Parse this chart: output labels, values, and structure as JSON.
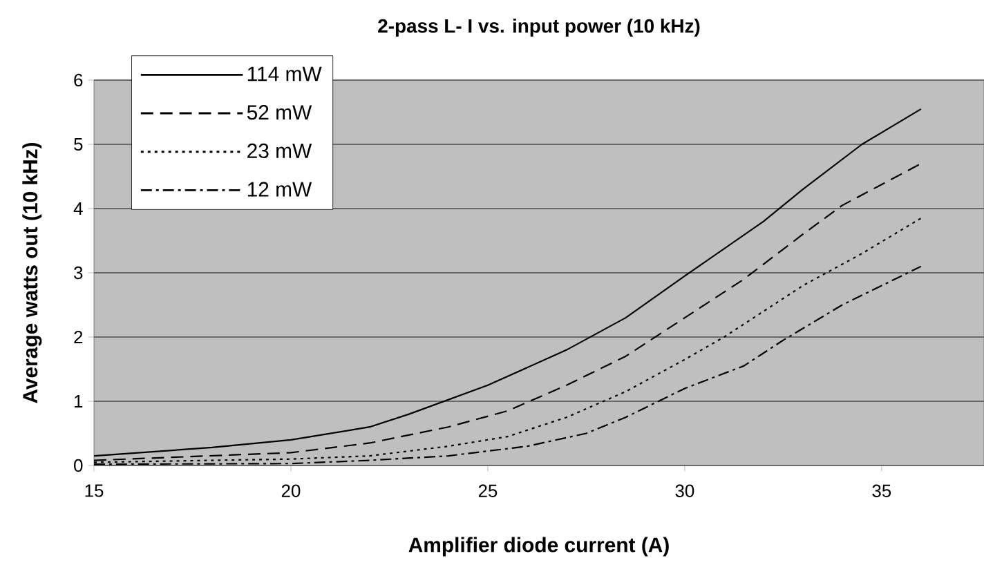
{
  "chart_data": {
    "type": "line",
    "title": "2-pass L- I vs. input power (10 kHz)",
    "xlabel": "Amplifier diode current (A)",
    "ylabel": "Average watts out (10 kHz)",
    "xlim": [
      15,
      37.6
    ],
    "xticks": [
      15,
      20,
      25,
      30,
      35
    ],
    "ylim": [
      0,
      6
    ],
    "yticks": [
      0,
      1,
      2,
      3,
      4,
      5,
      6
    ],
    "grid": "y",
    "legend": "top left",
    "marker": "none",
    "series": [
      {
        "name": "114 mW",
        "color": "#000000",
        "line_style": "solid",
        "x": [
          15,
          18,
          20,
          22,
          23,
          25,
          27,
          28.5,
          30,
          32,
          33,
          34.5,
          36
        ],
        "values": [
          0.15,
          0.28,
          0.4,
          0.6,
          0.8,
          1.25,
          1.8,
          2.3,
          2.95,
          3.8,
          4.3,
          5.0,
          5.55
        ]
      },
      {
        "name": "52 mW",
        "color": "#000000",
        "line_style": "dashed",
        "x": [
          15,
          20,
          22,
          24,
          25.5,
          27,
          28.5,
          30,
          31.5,
          33,
          34,
          36
        ],
        "values": [
          0.08,
          0.2,
          0.35,
          0.6,
          0.85,
          1.25,
          1.7,
          2.3,
          2.9,
          3.6,
          4.05,
          4.7
        ]
      },
      {
        "name": "23 mW",
        "color": "#000000",
        "line_style": "dotted",
        "x": [
          15,
          20,
          22,
          24,
          25.5,
          27,
          28.5,
          30,
          31,
          33,
          34.5,
          36
        ],
        "values": [
          0.05,
          0.1,
          0.15,
          0.3,
          0.45,
          0.75,
          1.15,
          1.65,
          2.0,
          2.8,
          3.3,
          3.85
        ]
      },
      {
        "name": "12 mW",
        "color": "#000000",
        "line_style": "dashdot",
        "x": [
          15,
          20,
          22,
          24,
          26,
          27.5,
          28.5,
          30,
          31.5,
          32.5,
          34,
          35.5,
          36
        ],
        "values": [
          0.02,
          0.03,
          0.08,
          0.15,
          0.3,
          0.5,
          0.75,
          1.2,
          1.55,
          1.95,
          2.5,
          2.95,
          3.1
        ]
      }
    ]
  }
}
